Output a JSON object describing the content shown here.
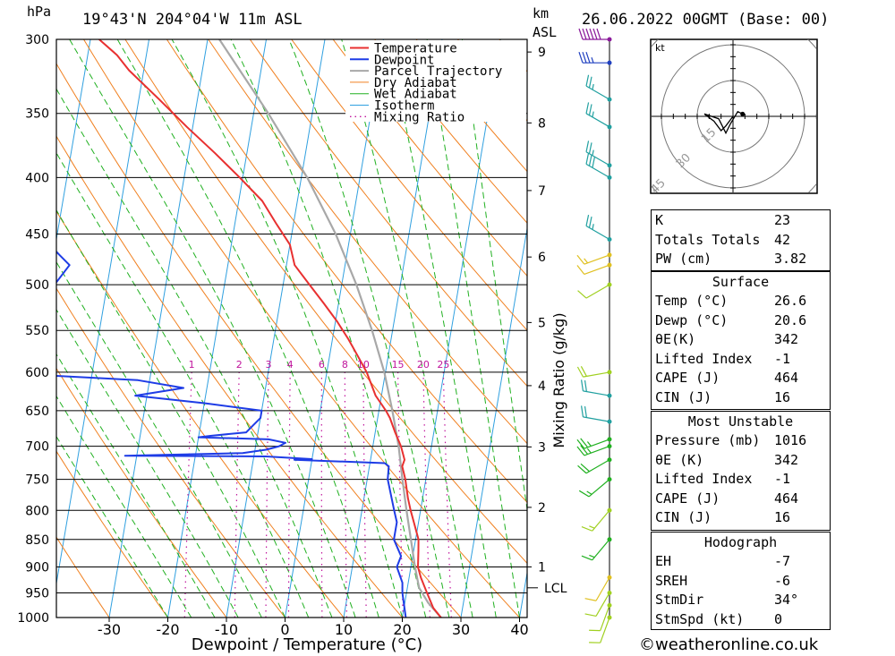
{
  "header": {
    "pressure_unit": "hPa",
    "location": "19°43'N  204°04'W  11m  ASL",
    "km_unit": "km",
    "asl": "ASL",
    "datetime": "26.06.2022  00GMT  (Base: 00)"
  },
  "chart_data": {
    "type": "skew-t",
    "xlabel": "Dewpoint / Temperature (°C)",
    "ylabel": "",
    "right_axis_label": "Mixing Ratio (g/kg)",
    "pressure_ticks": [
      300,
      350,
      400,
      450,
      500,
      550,
      600,
      650,
      700,
      750,
      800,
      850,
      900,
      950,
      1000
    ],
    "temperature_ticks": [
      -30,
      -20,
      -10,
      0,
      10,
      20,
      30,
      40
    ],
    "height_ticks_km": [
      1,
      2,
      3,
      4,
      5,
      6,
      7,
      8,
      9
    ],
    "lcl_label": "LCL",
    "lcl_pressure": 940,
    "mixing_ratio_labels": [
      "1",
      "2",
      "3",
      "4",
      "6",
      "8",
      "10",
      "15",
      "20",
      "25"
    ],
    "legend": [
      "Temperature",
      "Dewpoint",
      "Parcel Trajectory",
      "Dry Adiabat",
      "Wet Adiabat",
      "Isotherm",
      "Mixing Ratio"
    ],
    "colors": {
      "temperature": "#e83030",
      "dewpoint": "#1e3ce6",
      "parcel": "#a8a8a8",
      "dry_adiabat": "#f08020",
      "wet_adiabat": "#20b020",
      "isotherm": "#30a0e0",
      "mixing_ratio": "#c0149c"
    },
    "series": [
      {
        "name": "Temperature",
        "p": [
          1000,
          980,
          950,
          920,
          900,
          870,
          850,
          820,
          800,
          780,
          750,
          730,
          720,
          700,
          680,
          660,
          650,
          630,
          600,
          580,
          560,
          540,
          520,
          500,
          480,
          460,
          440,
          420,
          400,
          380,
          360,
          340,
          320,
          310,
          300
        ],
        "t": [
          26.6,
          25.0,
          23.5,
          22.0,
          21.2,
          20.8,
          20.5,
          19.2,
          18.3,
          17.5,
          16.5,
          15.6,
          15.8,
          14.8,
          13.4,
          12.1,
          11.2,
          9.0,
          6.8,
          4.8,
          2.7,
          0.3,
          -2.5,
          -5.5,
          -8.6,
          -10.0,
          -13.0,
          -16.0,
          -20.5,
          -25.5,
          -31.0,
          -36.5,
          -42.5,
          -45.0,
          -48.5
        ]
      },
      {
        "name": "Dewpoint",
        "p": [
          1000,
          950,
          930,
          900,
          880,
          850,
          820,
          800,
          750,
          730,
          725,
          722,
          720,
          719,
          715,
          714,
          710,
          705,
          700,
          695,
          690,
          687,
          685,
          680,
          670,
          660,
          650,
          640,
          630,
          620,
          610,
          600,
          580,
          560,
          540,
          520,
          500,
          480,
          470,
          460,
          440,
          420,
          400,
          380,
          360,
          350,
          340,
          330,
          320,
          310,
          305,
          300
        ],
        "t": [
          20.6,
          19.3,
          19.0,
          17.6,
          18.0,
          16.3,
          16.3,
          15.5,
          13.5,
          13.3,
          12.5,
          3.0,
          -3.0,
          0.0,
          -8.0,
          -32.0,
          -12.0,
          -8.0,
          -6.0,
          -5.0,
          -8.0,
          -20.0,
          -18.0,
          -12.0,
          -11.0,
          -10.0,
          -10.0,
          -20.0,
          -32.0,
          -24.0,
          -32.0,
          -58.0,
          -56.0,
          -56.0,
          -54.0,
          -52.0,
          -49.0,
          -47.0,
          -49.0,
          -51.0,
          -52.0,
          -54.0,
          -56.0,
          -58.0,
          -60.0,
          -60.0,
          -64.0,
          -68.0,
          -72.0,
          -72.0,
          -68.0,
          -62.0
        ]
      },
      {
        "name": "Parcel Trajectory",
        "p": [
          1000,
          970,
          940,
          900,
          850,
          800,
          750,
          700,
          650,
          600,
          550,
          500,
          450,
          400,
          350,
          300
        ],
        "t": [
          26.6,
          24.0,
          22.0,
          20.7,
          19.2,
          17.6,
          16.0,
          14.4,
          12.3,
          9.8,
          6.5,
          2.5,
          -2.5,
          -9.0,
          -17.5,
          -28.0
        ]
      }
    ],
    "wind_barbs": [
      {
        "p": 300,
        "direction_deg": 270,
        "speed_kt": 60,
        "color": "#8a1a9a"
      },
      {
        "p": 315,
        "direction_deg": 270,
        "speed_kt": 35,
        "color": "#2040c0"
      },
      {
        "p": 340,
        "direction_deg": 300,
        "speed_kt": 25,
        "color": "#20a0a0"
      },
      {
        "p": 360,
        "direction_deg": 300,
        "speed_kt": 25,
        "color": "#20a0a0"
      },
      {
        "p": 390,
        "direction_deg": 300,
        "speed_kt": 25,
        "color": "#20a0a0"
      },
      {
        "p": 400,
        "direction_deg": 300,
        "speed_kt": 30,
        "color": "#20a0a0"
      },
      {
        "p": 455,
        "direction_deg": 300,
        "speed_kt": 25,
        "color": "#20a0a0"
      },
      {
        "p": 470,
        "direction_deg": 250,
        "speed_kt": 15,
        "color": "#e0c020"
      },
      {
        "p": 480,
        "direction_deg": 250,
        "speed_kt": 10,
        "color": "#e0c020"
      },
      {
        "p": 500,
        "direction_deg": 240,
        "speed_kt": 10,
        "color": "#a0d020"
      },
      {
        "p": 600,
        "direction_deg": 260,
        "speed_kt": 20,
        "color": "#a0d020"
      },
      {
        "p": 630,
        "direction_deg": 280,
        "speed_kt": 20,
        "color": "#20a0a0"
      },
      {
        "p": 665,
        "direction_deg": 280,
        "speed_kt": 20,
        "color": "#20a0a0"
      },
      {
        "p": 690,
        "direction_deg": 250,
        "speed_kt": 25,
        "color": "#20b020"
      },
      {
        "p": 700,
        "direction_deg": 250,
        "speed_kt": 25,
        "color": "#20b020"
      },
      {
        "p": 720,
        "direction_deg": 240,
        "speed_kt": 20,
        "color": "#20b020"
      },
      {
        "p": 750,
        "direction_deg": 230,
        "speed_kt": 15,
        "color": "#20b020"
      },
      {
        "p": 800,
        "direction_deg": 220,
        "speed_kt": 15,
        "color": "#a0d020"
      },
      {
        "p": 850,
        "direction_deg": 220,
        "speed_kt": 15,
        "color": "#20b020"
      },
      {
        "p": 920,
        "direction_deg": 210,
        "speed_kt": 10,
        "color": "#e0c020"
      },
      {
        "p": 950,
        "direction_deg": 210,
        "speed_kt": 10,
        "color": "#a0d020"
      },
      {
        "p": 975,
        "direction_deg": 200,
        "speed_kt": 10,
        "color": "#a0d020"
      },
      {
        "p": 1000,
        "direction_deg": 200,
        "speed_kt": 10,
        "color": "#a0d020"
      }
    ],
    "hodograph": {
      "unit_label": "kt",
      "ring_labels": [
        "15",
        "30",
        "45"
      ],
      "trace_uv_kt": [
        [
          0,
          0
        ],
        [
          -3,
          -4
        ],
        [
          -5,
          -6
        ],
        [
          -8,
          -2
        ],
        [
          -12,
          1
        ],
        [
          -6,
          -1
        ],
        [
          -3,
          -7
        ],
        [
          -1,
          -3
        ],
        [
          2,
          2
        ],
        [
          4,
          1
        ]
      ]
    }
  },
  "indices": {
    "general": [
      {
        "label": "K",
        "value": "23"
      },
      {
        "label": "Totals Totals",
        "value": "42"
      },
      {
        "label": "PW (cm)",
        "value": "3.82"
      }
    ],
    "surface": {
      "title": "Surface",
      "rows": [
        {
          "label": "Temp (°C)",
          "value": "26.6"
        },
        {
          "label": "Dewp (°C)",
          "value": "20.6"
        },
        {
          "label": "θE(K)",
          "value": "342"
        },
        {
          "label": "Lifted Index",
          "value": "-1"
        },
        {
          "label": "CAPE (J)",
          "value": "464"
        },
        {
          "label": "CIN (J)",
          "value": "16"
        }
      ]
    },
    "most_unstable": {
      "title": "Most Unstable",
      "rows": [
        {
          "label": "Pressure (mb)",
          "value": "1016"
        },
        {
          "label": "θE (K)",
          "value": "342"
        },
        {
          "label": "Lifted Index",
          "value": "-1"
        },
        {
          "label": "CAPE (J)",
          "value": "464"
        },
        {
          "label": "CIN (J)",
          "value": "16"
        }
      ]
    },
    "hodograph": {
      "title": "Hodograph",
      "rows": [
        {
          "label": "EH",
          "value": "-7"
        },
        {
          "label": "SREH",
          "value": "-6"
        },
        {
          "label": "StmDir",
          "value": "34°"
        },
        {
          "label": "StmSpd (kt)",
          "value": "0"
        }
      ]
    }
  },
  "credit": "©weatheronline.co.uk"
}
